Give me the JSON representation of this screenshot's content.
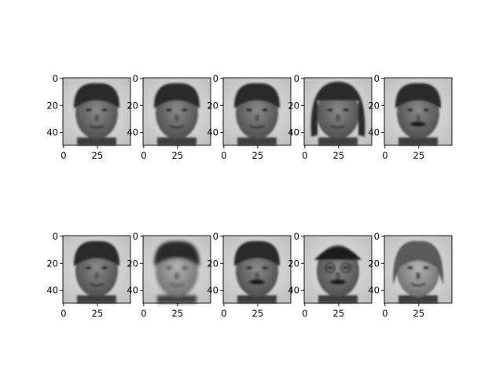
{
  "figure": {
    "background": "#ffffff",
    "image_shape": [
      50,
      50
    ],
    "xtick_labels": [
      "0",
      "25"
    ],
    "ytick_labels": [
      "0",
      "20",
      "40"
    ],
    "rows": [
      {
        "panels": [
          {
            "description_icon": "face-portrait-icon",
            "subject": "asian-man-smiling"
          },
          {
            "description_icon": "face-portrait-icon",
            "subject": "asian-man-neutral"
          },
          {
            "description_icon": "face-portrait-icon",
            "subject": "asian-man-smiling"
          },
          {
            "description_icon": "face-portrait-icon",
            "subject": "woman-with-bangs"
          },
          {
            "description_icon": "face-portrait-icon",
            "subject": "man-with-mustache"
          }
        ]
      },
      {
        "panels": [
          {
            "description_icon": "face-portrait-icon",
            "subject": "asian-man-smiling"
          },
          {
            "description_icon": "face-portrait-icon",
            "subject": "blurred-face"
          },
          {
            "description_icon": "face-portrait-icon",
            "subject": "man-with-mustache"
          },
          {
            "description_icon": "face-portrait-icon",
            "subject": "man-with-glasses-and-cap"
          },
          {
            "description_icon": "face-portrait-icon",
            "subject": "woman-light-hair"
          }
        ]
      }
    ],
    "colors": {
      "axis": "#000000",
      "image_bg": "#d8d8d8",
      "face_dark": "#2a2a2a",
      "face_mid": "#6e6e6e",
      "face_light": "#9a9a9a"
    }
  }
}
